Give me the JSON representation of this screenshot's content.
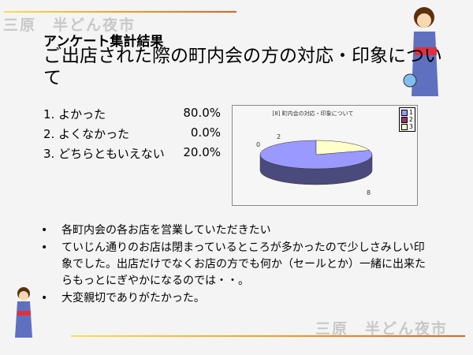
{
  "logo_text": "三原　半どん夜市",
  "subtitle": "アンケート集計結果",
  "title": "ご出店された際の町内会の方の対応・印象について",
  "results": [
    {
      "label": "1. よかった",
      "value": "80.0%"
    },
    {
      "label": "2. よくなかった",
      "value": "0.0%"
    },
    {
      "label": "3. どちらともいえない",
      "value": "20.0%"
    }
  ],
  "chart_data": {
    "type": "pie",
    "title": "[8] 町内会の対応・印象について",
    "categories": [
      "1",
      "2",
      "3"
    ],
    "values": [
      8,
      0,
      2
    ],
    "colors": [
      "#9999ff",
      "#993366",
      "#ffffcc"
    ],
    "legend": "top-right"
  },
  "comments": [
    "各町内会の各お店を営業していただきたい",
    "ていじん通りのお店は閉まっているところが多かったので少しさみしい印象でした。出店だけでなくお店の方でも何か（セールとか）一緒に出来たらもっとにぎやかになるのでは・・。",
    "大変親切でありがたかった。"
  ]
}
